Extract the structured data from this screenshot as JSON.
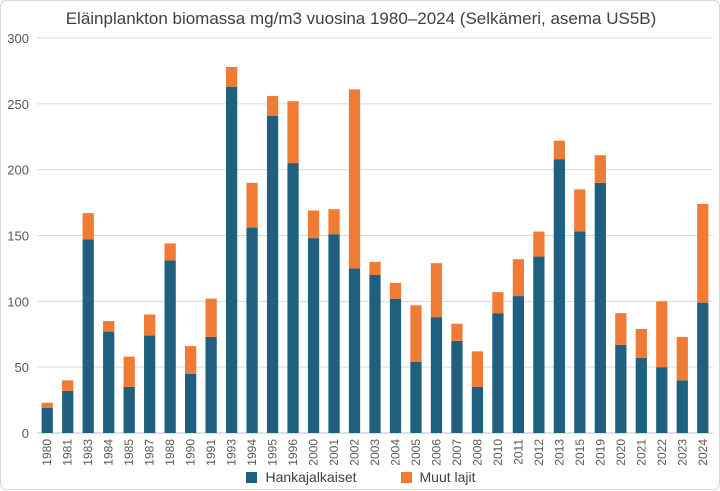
{
  "chart_data": {
    "type": "bar",
    "stacked": true,
    "title": "Eläinplankton biomassa mg/m3 vuosina 1980–2024 (Selkämeri, asema US5B)",
    "xlabel": "",
    "ylabel": "",
    "ylim": [
      0,
      300
    ],
    "yticks": [
      "0",
      "50",
      "100",
      "150",
      "200",
      "250",
      "300"
    ],
    "grid": true,
    "legend_position": "bottom",
    "categories": [
      "1980",
      "1981",
      "1983",
      "1984",
      "1985",
      "1987",
      "1988",
      "1990",
      "1991",
      "1993",
      "1994",
      "1995",
      "1996",
      "2000",
      "2001",
      "2002",
      "2003",
      "2004",
      "2005",
      "2006",
      "2007",
      "2008",
      "2010",
      "2011",
      "2012",
      "2013",
      "2015",
      "2019",
      "2020",
      "2021",
      "2022",
      "2023",
      "2024"
    ],
    "series": [
      {
        "name": "Hankajalkaiset",
        "color": "#1f5f80",
        "values": [
          19,
          32,
          147,
          77,
          35,
          74,
          131,
          45,
          73,
          263,
          156,
          241,
          205,
          148,
          151,
          125,
          120,
          102,
          54,
          88,
          70,
          35,
          91,
          104,
          134,
          208,
          153,
          190,
          67,
          57,
          50,
          40,
          99
        ]
      },
      {
        "name": "Muut lajit",
        "color": "#f07b35",
        "values": [
          4,
          8,
          20,
          8,
          23,
          16,
          13,
          21,
          29,
          15,
          34,
          15,
          47,
          21,
          19,
          136,
          10,
          12,
          43,
          41,
          13,
          27,
          16,
          28,
          19,
          14,
          32,
          21,
          24,
          22,
          50,
          33,
          75
        ]
      }
    ]
  }
}
